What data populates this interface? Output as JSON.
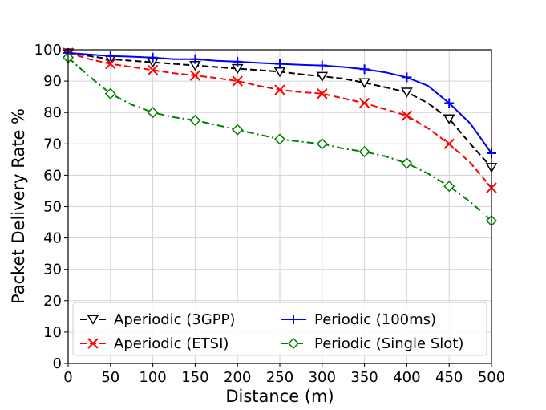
{
  "chart_data": {
    "type": "line",
    "title": "",
    "xlabel": "Distance (m)",
    "ylabel": "Packet Delivery Rate %",
    "xlim": [
      0,
      500
    ],
    "ylim": [
      0,
      100
    ],
    "xticks": [
      0,
      50,
      100,
      150,
      200,
      250,
      300,
      350,
      400,
      450,
      500
    ],
    "yticks": [
      0,
      10,
      20,
      30,
      40,
      50,
      60,
      70,
      80,
      90,
      100
    ],
    "grid": true,
    "legend_position": "lower-center",
    "series": [
      {
        "name": "Aperiodic (3GPP)",
        "color": "#000000",
        "line_style": "dashed",
        "marker": "triangle-down",
        "x": [
          0,
          25,
          50,
          75,
          100,
          125,
          150,
          175,
          200,
          225,
          250,
          275,
          300,
          325,
          350,
          375,
          400,
          425,
          450,
          475,
          500
        ],
        "y": [
          99,
          98,
          97,
          96.5,
          96,
          95.5,
          95,
          94.5,
          94,
          93.5,
          93,
          92.2,
          91.5,
          90.8,
          89.5,
          88,
          86.5,
          83,
          78,
          70,
          62.5
        ]
      },
      {
        "name": "Aperiodic (ETSI)",
        "color": "#ff0000",
        "line_style": "dashed",
        "marker": "x",
        "x": [
          0,
          25,
          50,
          75,
          100,
          125,
          150,
          175,
          200,
          225,
          250,
          275,
          300,
          325,
          350,
          375,
          400,
          425,
          450,
          475,
          500
        ],
        "y": [
          99,
          97,
          95.5,
          94.5,
          93.5,
          92.5,
          91.8,
          91,
          90,
          88.5,
          87.2,
          86.5,
          86,
          84.5,
          83,
          81,
          79,
          75,
          70,
          64,
          56
        ]
      },
      {
        "name": "Periodic (100ms)",
        "color": "#0000ff",
        "line_style": "solid",
        "marker": "plus",
        "x": [
          0,
          25,
          50,
          75,
          100,
          125,
          150,
          175,
          200,
          225,
          250,
          275,
          300,
          325,
          350,
          375,
          400,
          425,
          450,
          475,
          500
        ],
        "y": [
          99,
          98.5,
          98,
          97.8,
          97.5,
          97,
          97,
          96.5,
          96.2,
          95.8,
          95.5,
          95.2,
          95,
          94.5,
          93.8,
          92.8,
          91.2,
          88.5,
          83,
          76.5,
          67
        ]
      },
      {
        "name": "Periodic (Single Slot)",
        "color": "#008000",
        "line_style": "dashdot",
        "marker": "diamond",
        "x": [
          0,
          25,
          50,
          75,
          100,
          125,
          150,
          175,
          200,
          225,
          250,
          275,
          300,
          325,
          350,
          375,
          400,
          425,
          450,
          475,
          500
        ],
        "y": [
          97.5,
          91.5,
          86,
          82.5,
          80,
          78.5,
          77.5,
          76,
          74.5,
          73,
          71.5,
          70.7,
          70,
          68.5,
          67.5,
          66,
          63.8,
          60.5,
          56.5,
          51.5,
          45.5
        ]
      }
    ]
  }
}
